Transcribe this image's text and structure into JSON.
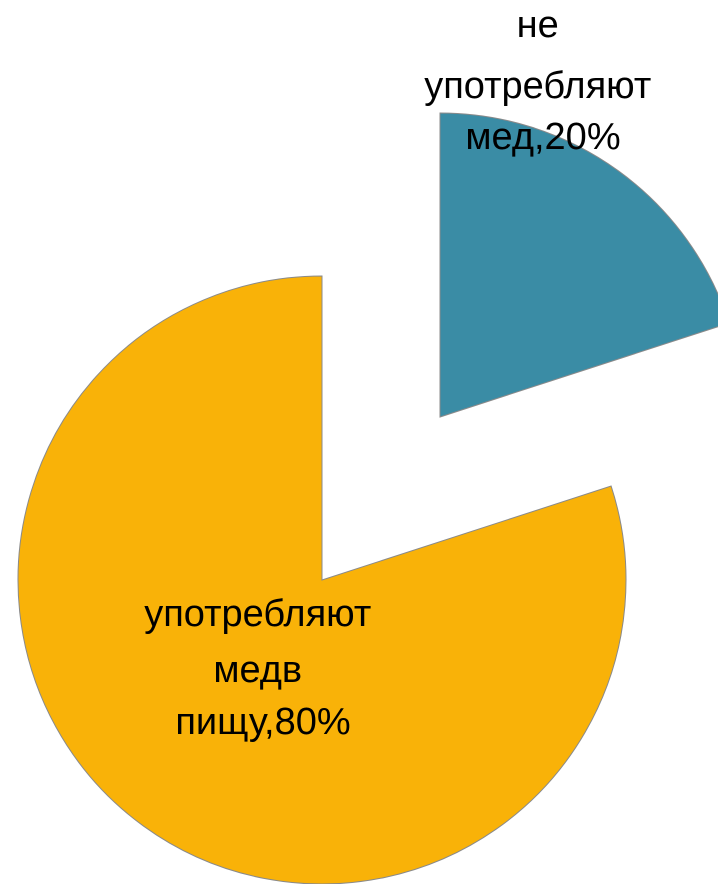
{
  "chart_data": {
    "type": "pie",
    "exploded": true,
    "slices": [
      {
        "label_lines": [
          "не",
          "употребляют",
          "мед,20%"
        ],
        "value": 20,
        "color": "#3A8CA5"
      },
      {
        "label_lines": [
          "употребляют",
          "медв",
          "пищу,80%"
        ],
        "value": 80,
        "color": "#F9B208"
      }
    ]
  }
}
